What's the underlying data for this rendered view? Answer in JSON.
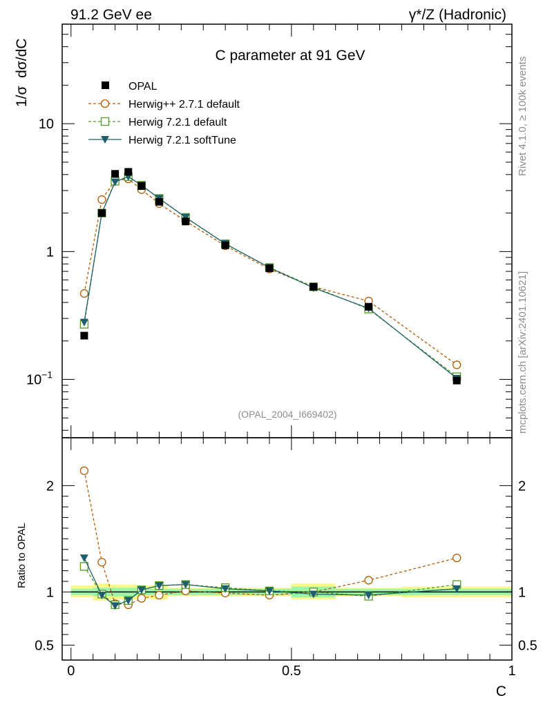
{
  "header": {
    "left": "91.2 GeV ee",
    "right": "γ*/Z (Hadronic)"
  },
  "side_labels": {
    "rivet": "Rivet 4.1.0, ≥ 100k events",
    "mcplots": "mcplots.cern.ch [arXiv:2401.10621]"
  },
  "colors": {
    "opal": "#000000",
    "herwigpp": "#b35a00",
    "herwig_default": "#4f9a1e",
    "herwig_soft": "#1f5f6b",
    "band_inner": "#9df5a8",
    "band_outer": "#f7f78c"
  },
  "chart_data": [
    {
      "type": "line",
      "title": "C parameter at 91 GeV",
      "analysis_id": "(OPAL_2004_I669402)",
      "ylabel": "1/σ  dσ/dC",
      "yscale": "log",
      "ylim": [
        0.035,
        60
      ],
      "xlim": [
        -0.02,
        1.0
      ],
      "y_ticks": [
        {
          "value": 0.1,
          "label": "10",
          "sup": "−1"
        },
        {
          "value": 1,
          "label": "1",
          "sup": ""
        },
        {
          "value": 10,
          "label": "10",
          "sup": ""
        }
      ],
      "legend": [
        "OPAL",
        "Herwig++ 2.7.1 default",
        "Herwig 7.2.1 default",
        "Herwig 7.2.1 softTune"
      ],
      "x": [
        0.03,
        0.07,
        0.1,
        0.13,
        0.16,
        0.2,
        0.26,
        0.35,
        0.45,
        0.55,
        0.675,
        0.875
      ],
      "x_bins": [
        [
          0.0,
          0.05
        ],
        [
          0.05,
          0.09
        ],
        [
          0.09,
          0.11
        ],
        [
          0.11,
          0.15
        ],
        [
          0.15,
          0.18
        ],
        [
          0.18,
          0.22
        ],
        [
          0.22,
          0.3
        ],
        [
          0.3,
          0.4
        ],
        [
          0.4,
          0.5
        ],
        [
          0.5,
          0.6
        ],
        [
          0.6,
          0.75
        ],
        [
          0.75,
          1.0
        ]
      ],
      "series": [
        {
          "name": "OPAL",
          "values": [
            0.22,
            2.0,
            4.05,
            4.2,
            3.25,
            2.45,
            1.72,
            1.12,
            0.74,
            0.53,
            0.37,
            0.098
          ]
        },
        {
          "name": "Herwig++ 2.7.1 default",
          "values": [
            0.47,
            2.55,
            3.6,
            3.7,
            3.05,
            2.37,
            1.73,
            1.11,
            0.73,
            0.53,
            0.41,
            0.13
          ]
        },
        {
          "name": "Herwig 7.2.1 default",
          "values": [
            0.27,
            2.0,
            3.55,
            3.85,
            3.3,
            2.6,
            1.85,
            1.15,
            0.75,
            0.53,
            0.355,
            0.105
          ]
        },
        {
          "name": "Herwig 7.2.1 softTune",
          "values": [
            0.28,
            2.0,
            3.5,
            3.85,
            3.3,
            2.6,
            1.85,
            1.15,
            0.75,
            0.52,
            0.36,
            0.102
          ]
        }
      ]
    },
    {
      "type": "line",
      "ylabel": "Ratio to OPAL",
      "xlabel": "C",
      "ylim": [
        0.36,
        2.45
      ],
      "xlim": [
        -0.02,
        1.0
      ],
      "y_ticks": [
        {
          "value": 0.5,
          "label": "0.5"
        },
        {
          "value": 1,
          "label": "1"
        },
        {
          "value": 2,
          "label": "2"
        }
      ],
      "x_ticks": [
        {
          "value": 0,
          "label": "0"
        },
        {
          "value": 0.5,
          "label": "0.5"
        },
        {
          "value": 1,
          "label": "1"
        }
      ],
      "bands": {
        "inner": [
          [
            0.97,
            1.03
          ],
          [
            0.96,
            1.04
          ],
          [
            0.96,
            1.04
          ],
          [
            0.96,
            1.04
          ],
          [
            0.97,
            1.03
          ],
          [
            0.97,
            1.03
          ],
          [
            0.97,
            1.03
          ],
          [
            0.97,
            1.03
          ],
          [
            0.97,
            1.03
          ],
          [
            0.95,
            1.05
          ],
          [
            0.97,
            1.03
          ],
          [
            0.97,
            1.03
          ]
        ],
        "outer": [
          [
            0.95,
            1.06
          ],
          [
            0.92,
            1.08
          ],
          [
            0.93,
            1.07
          ],
          [
            0.93,
            1.07
          ],
          [
            0.94,
            1.06
          ],
          [
            0.93,
            1.06
          ],
          [
            0.96,
            1.04
          ],
          [
            0.96,
            1.04
          ],
          [
            0.96,
            1.04
          ],
          [
            0.93,
            1.08
          ],
          [
            0.96,
            1.04
          ],
          [
            0.95,
            1.05
          ]
        ]
      },
      "series": [
        {
          "name": "Herwig++ 2.7.1 default",
          "values": [
            2.14,
            1.28,
            0.89,
            0.88,
            0.94,
            0.97,
            1.01,
            0.99,
            0.97,
            1.0,
            1.11,
            1.32
          ]
        },
        {
          "name": "Herwig 7.2.1 default",
          "values": [
            1.24,
            0.98,
            0.88,
            0.92,
            1.02,
            1.06,
            1.07,
            1.04,
            1.01,
            1.0,
            0.96,
            1.07
          ]
        },
        {
          "name": "Herwig 7.2.1 softTune",
          "values": [
            1.32,
            0.97,
            0.87,
            0.92,
            1.02,
            1.06,
            1.07,
            1.03,
            1.01,
            0.98,
            0.97,
            1.03
          ]
        }
      ]
    }
  ]
}
